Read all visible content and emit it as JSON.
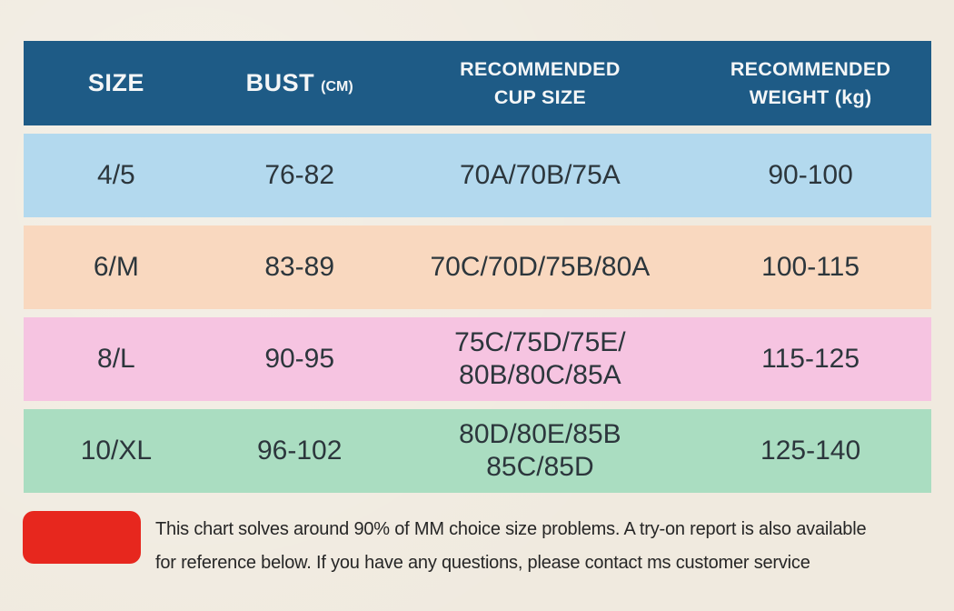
{
  "colors": {
    "background": "#f0eadf",
    "header_bg": "#1e5b86",
    "header_text": "#f4f6f7",
    "cell_text": "#2c363c",
    "legend_red": "#e7271e"
  },
  "header": {
    "size": "SIZE",
    "bust": "BUST",
    "bust_unit": "(CM)",
    "cup_line1": "RECOMMENDED",
    "cup_line2": "CUP SIZE",
    "weight_line1": "RECOMMENDED",
    "weight_line2": "WEIGHT (kg)"
  },
  "table": {
    "rows": [
      {
        "size": "4/5",
        "bust": "76-82",
        "cup_lines": [
          "70A/70B/75A"
        ],
        "weight": "90-100",
        "row_color": "#b3d9ee"
      },
      {
        "size": "6/M",
        "bust": "83-89",
        "cup_lines": [
          "70C/70D/75B/80A"
        ],
        "weight": "100-115",
        "row_color": "#f9d8bf"
      },
      {
        "size": "8/L",
        "bust": "90-95",
        "cup_lines": [
          "75C/75D/75E/",
          "80B/80C/85A"
        ],
        "weight": "115-125",
        "row_color": "#f6c4e1"
      },
      {
        "size": "10/XL",
        "bust": "96-102",
        "cup_lines": [
          "80D/80E/85B",
          "85C/85D"
        ],
        "weight": "125-140",
        "row_color": "#aaddc1"
      }
    ]
  },
  "footer": {
    "lines": [
      "This chart solves around 90% of MM choice size problems. A try-on report is also available",
      "for reference below. If you have any questions, please contact ms customer service"
    ]
  },
  "chart_data": {
    "type": "table",
    "title": "Bra size chart",
    "columns": [
      "SIZE",
      "BUST (CM)",
      "RECOMMENDED CUP SIZE",
      "RECOMMENDED WEIGHT (kg)"
    ],
    "rows": [
      [
        "4/5",
        "76-82",
        "70A/70B/75A",
        "90-100"
      ],
      [
        "6/M",
        "83-89",
        "70C/70D/75B/80A",
        "100-115"
      ],
      [
        "8/L",
        "90-95",
        "75C/75D/75E/80B/80C/85A",
        "115-125"
      ],
      [
        "10/XL",
        "96-102",
        "80D/80E/85B 85C/85D",
        "125-140"
      ]
    ],
    "row_colors": [
      "#b3d9ee",
      "#f9d8bf",
      "#f6c4e1",
      "#aaddc1"
    ],
    "note": "This chart solves around 90% of MM choice size problems. A try-on report is also available for reference below. If you have any questions, please contact ms customer service"
  }
}
